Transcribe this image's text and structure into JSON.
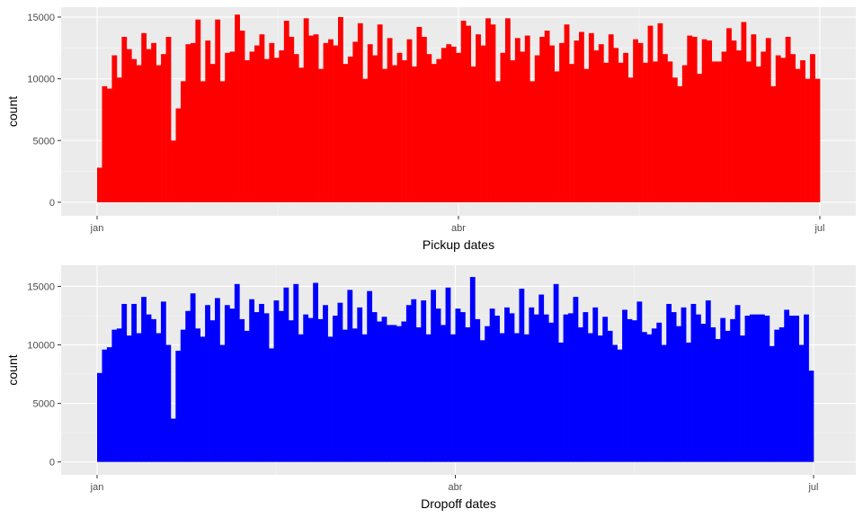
{
  "colors": {
    "panel_background": "#EBEBEB",
    "grid_major": "#FFFFFF",
    "grid_minor": "#F5F5F5"
  },
  "chart_data": [
    {
      "type": "bar",
      "xlabel": "Pickup dates",
      "ylabel": "count",
      "color": "#FF0000",
      "ylim": [
        -1100,
        15800
      ],
      "y_ticks": [
        0,
        5000,
        10000,
        15000
      ],
      "x_ticks": [
        "jan",
        "abr",
        "jul"
      ],
      "x_start": "jan",
      "x_end": "jul",
      "grid": true,
      "values": [
        2800,
        9400,
        9200,
        11900,
        10100,
        13400,
        12400,
        11600,
        11100,
        13700,
        12400,
        12900,
        11100,
        12000,
        13400,
        5000,
        7600,
        9800,
        12800,
        12900,
        14800,
        9800,
        13100,
        11200,
        14800,
        9800,
        12100,
        12200,
        15200,
        13900,
        11500,
        12200,
        12700,
        13600,
        11600,
        12900,
        11700,
        12300,
        14700,
        13400,
        12000,
        10900,
        14900,
        13500,
        13600,
        10800,
        12900,
        13200,
        12700,
        15000,
        11200,
        11800,
        13000,
        14500,
        10000,
        12800,
        11900,
        14400,
        10800,
        13300,
        11100,
        12100,
        11500,
        13200,
        11000,
        14200,
        13400,
        12000,
        11200,
        11600,
        12500,
        12800,
        12600,
        12100,
        14700,
        14300,
        11000,
        13600,
        12700,
        14900,
        14400,
        9800,
        12100,
        14900,
        11500,
        13300,
        12200,
        13500,
        9800,
        11900,
        13400,
        13900,
        12700,
        10600,
        12900,
        14400,
        11200,
        13100,
        13800,
        10800,
        13700,
        12300,
        12800,
        11300,
        13600,
        12500,
        11300,
        12100,
        10100,
        13200,
        12900,
        11300,
        14300,
        11400,
        14500,
        12000,
        11400,
        10100,
        9400,
        11100,
        13500,
        13400,
        10400,
        13200,
        13100,
        11400,
        11400,
        12200,
        14100,
        13100,
        12300,
        14600,
        11400,
        13600,
        11000,
        12200,
        13300,
        9400,
        11900,
        11700,
        13400,
        12000,
        10800,
        11500,
        10000,
        12000,
        10000
      ]
    },
    {
      "type": "bar",
      "xlabel": "Dropoff dates",
      "ylabel": "count",
      "color": "#0000FF",
      "ylim": [
        -1100,
        16800
      ],
      "y_ticks": [
        0,
        5000,
        10000,
        15000
      ],
      "x_ticks": [
        "jan",
        "abr",
        "jul"
      ],
      "x_start": "jan",
      "x_end": "jul",
      "grid": true,
      "values": [
        7600,
        9600,
        9800,
        11300,
        11400,
        13500,
        10800,
        13500,
        11000,
        14100,
        12600,
        12200,
        11000,
        13700,
        10000,
        3700,
        9500,
        11300,
        12900,
        14400,
        11400,
        10700,
        13400,
        12100,
        14000,
        10000,
        13400,
        13100,
        15200,
        12200,
        11200,
        13900,
        12800,
        13500,
        12700,
        9700,
        13800,
        12900,
        14900,
        12100,
        15200,
        10900,
        12600,
        12300,
        15300,
        12200,
        13400,
        10700,
        12500,
        13600,
        11300,
        14700,
        11400,
        13200,
        10900,
        14600,
        12800,
        12000,
        12400,
        11700,
        11700,
        11600,
        12000,
        13400,
        13900,
        11500,
        13800,
        10900,
        14700,
        13100,
        11700,
        14900,
        10900,
        13100,
        12800,
        11500,
        15800,
        12200,
        10400,
        11600,
        13100,
        12500,
        11000,
        13200,
        12700,
        11000,
        14800,
        10900,
        13200,
        12600,
        14300,
        12600,
        11900,
        15200,
        10200,
        12600,
        12700,
        14100,
        11500,
        12800,
        11000,
        13200,
        10800,
        12400,
        11200,
        10000,
        9600,
        13000,
        12200,
        12100,
        13700,
        11100,
        10900,
        11400,
        11900,
        10000,
        13500,
        12800,
        11600,
        13200,
        10200,
        13500,
        12600,
        11800,
        13800,
        11500,
        10500,
        12300,
        11200,
        12200,
        13400,
        10800,
        12500,
        12600,
        12600,
        12600,
        12500,
        9900,
        11300,
        11500,
        13000,
        12500,
        12500,
        10000,
        12600,
        7800
      ]
    }
  ]
}
